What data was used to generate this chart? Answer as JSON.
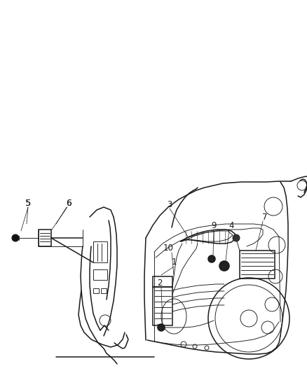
{
  "bg_color": "#ffffff",
  "line_color": "#1a1a1a",
  "label_color": "#1a1a1a",
  "figsize": [
    4.38,
    5.33
  ],
  "dpi": 100,
  "label_fontsize": 8.5,
  "lw_main": 1.1,
  "lw_thin": 0.65,
  "lw_thick": 1.4
}
